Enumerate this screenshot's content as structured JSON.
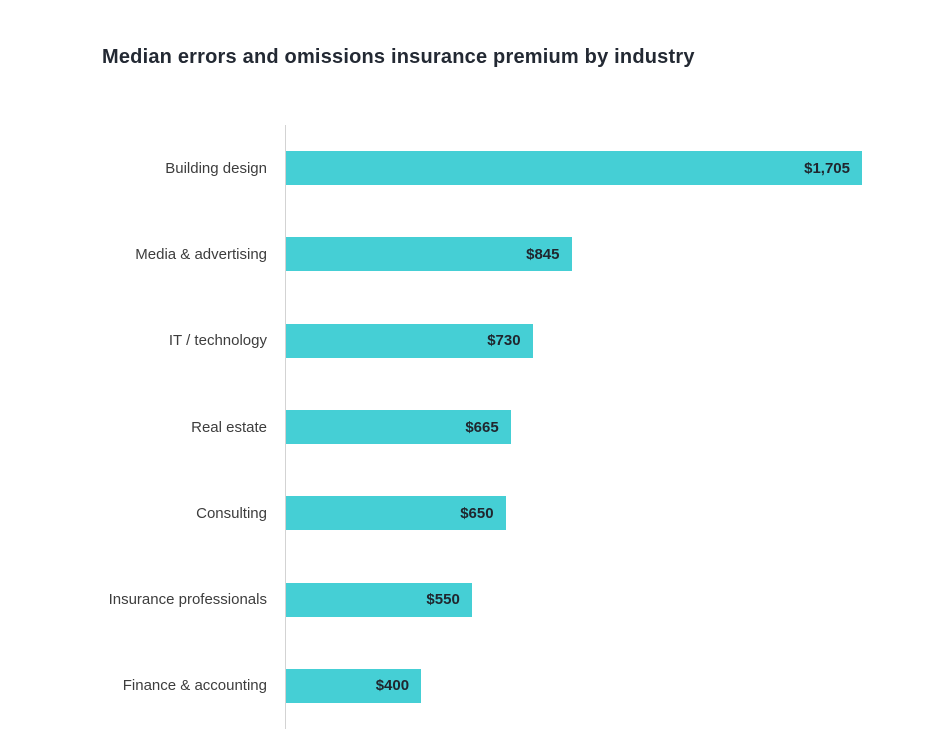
{
  "chart_data": {
    "type": "bar",
    "orientation": "horizontal",
    "title": "Median errors and omissions insurance premium by industry",
    "categories": [
      "Building design",
      "Media & advertising",
      "IT / technology",
      "Real estate",
      "Consulting",
      "Insurance professionals",
      "Finance & accounting"
    ],
    "values": [
      1705,
      845,
      730,
      665,
      650,
      550,
      400
    ],
    "value_labels": [
      "$1,705",
      "$845",
      "$730",
      "$665",
      "$650",
      "$550",
      "$400"
    ],
    "xlim": [
      0,
      1705
    ],
    "ylabel": "",
    "xlabel": "",
    "grid": "off",
    "legend": "none",
    "bar_color": "#45cfd5",
    "axis_line_color": "#d3d3d3",
    "title_color": "#232933",
    "category_label_color": "#3d3d3d",
    "value_label_color": "#20262e"
  }
}
